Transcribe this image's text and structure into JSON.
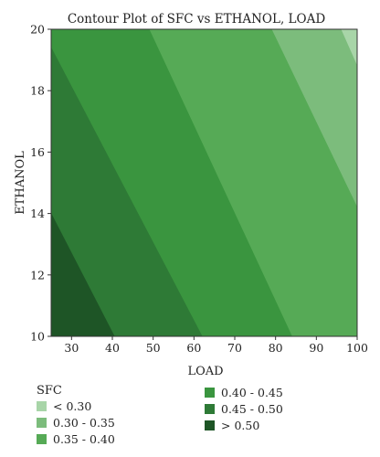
{
  "chart_data": {
    "type": "contour",
    "title": "Contour Plot of SFC vs ETHANOL, LOAD",
    "xlabel": "LOAD",
    "ylabel": "ETHANOL",
    "xlim": [
      25,
      100
    ],
    "ylim": [
      10,
      20
    ],
    "x_ticks": [
      30,
      40,
      50,
      60,
      70,
      80,
      90,
      100
    ],
    "y_ticks": [
      10,
      12,
      14,
      16,
      18,
      20
    ],
    "contour_lines": [
      {
        "level": 0.5,
        "x": [
          25,
          40.5
        ],
        "y": [
          14,
          10
        ]
      },
      {
        "level": 0.45,
        "x": [
          25,
          62
        ],
        "y": [
          19.4,
          10
        ]
      },
      {
        "level": 0.4,
        "x": [
          49,
          84
        ],
        "y": [
          20,
          10
        ]
      },
      {
        "level": 0.35,
        "x": [
          79,
          100
        ],
        "y": [
          20,
          14.2
        ]
      },
      {
        "level": 0.3,
        "x": [
          96,
          100
        ],
        "y": [
          20,
          18.8
        ]
      }
    ],
    "legend": {
      "title": "SFC",
      "bands": [
        {
          "label": "< 0.30",
          "color": "#a8d5a8"
        },
        {
          "label": "0.30 - 0.35",
          "color": "#7cbc7c"
        },
        {
          "label": "0.35 - 0.40",
          "color": "#56aa56"
        },
        {
          "label": "0.40 - 0.45",
          "color": "#3a953f"
        },
        {
          "label": "0.45 - 0.50",
          "color": "#2e7a36"
        },
        {
          "label": "> 0.50",
          "color": "#1e5526"
        }
      ]
    }
  }
}
